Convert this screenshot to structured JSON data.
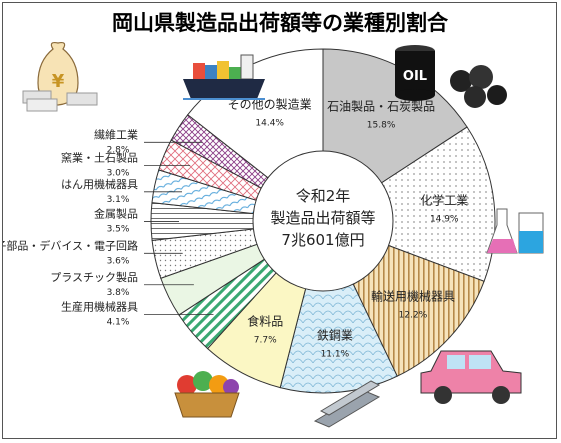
{
  "chart_data": {
    "type": "pie",
    "title": "岡山県製造品出荷額等の業種別割合",
    "center_text": [
      "令和2年",
      "製造品出荷額等",
      "7兆601億円"
    ],
    "slices": [
      {
        "label": "石油製品・石炭製品",
        "pct_text": "15.8%",
        "value": 15.8,
        "fill": "#c7c7c7",
        "pattern": "solid"
      },
      {
        "label": "化学工業",
        "pct_text": "14.9%",
        "value": 14.9,
        "fill": "#ffffff",
        "pattern": "dots"
      },
      {
        "label": "輸送用機械器具",
        "pct_text": "12.2%",
        "value": 12.2,
        "fill": "#f3d9a6",
        "pattern": "vstripes"
      },
      {
        "label": "鉄鋼業",
        "pct_text": "11.1%",
        "value": 11.1,
        "fill": "#cfe7f5",
        "pattern": "scales"
      },
      {
        "label": "食料品",
        "pct_text": "7.7%",
        "value": 7.7,
        "fill": "#fbf7c4",
        "pattern": "solid"
      },
      {
        "label": "生産用機械器具",
        "pct_text": "4.1%",
        "value": 4.1,
        "fill": "#ffffff",
        "pattern": "greenstripes"
      },
      {
        "label": "プラスチック製品",
        "pct_text": "3.8%",
        "value": 3.8,
        "fill": "#eaf6e4",
        "pattern": "solid"
      },
      {
        "label": "電子部品・デバイス・電子回路",
        "pct_text": "3.6%",
        "value": 3.6,
        "fill": "#ffffff",
        "pattern": "finedots"
      },
      {
        "label": "金属製品",
        "pct_text": "3.5%",
        "value": 3.5,
        "fill": "#ffffff",
        "pattern": "hlines"
      },
      {
        "label": "はん用機械器具",
        "pct_text": "3.1%",
        "value": 3.1,
        "fill": "#ffffff",
        "pattern": "bluediag"
      },
      {
        "label": "窯業・土石製品",
        "pct_text": "3.0%",
        "value": 3.0,
        "fill": "#ffffff",
        "pattern": "redcross"
      },
      {
        "label": "繊維工業",
        "pct_text": "2.8%",
        "value": 2.8,
        "fill": "#ffffff",
        "pattern": "purplecross"
      },
      {
        "label": "その他の製造業",
        "pct_text": "14.4%",
        "value": 14.4,
        "fill": "#ffffff",
        "pattern": "solid"
      }
    ]
  },
  "illustrations": {
    "oil_drum": {
      "text": "OIL",
      "icon": "oil-drum-icon"
    },
    "money_bag": {
      "text": "¥",
      "icon": "money-bag-icon"
    },
    "ship": "cargo-ship-icon",
    "coal": "coal-icon",
    "flasks": "flask-icon",
    "car": "car-icon",
    "basket": "vegetable-basket-icon",
    "steel": "steel-beam-icon"
  }
}
